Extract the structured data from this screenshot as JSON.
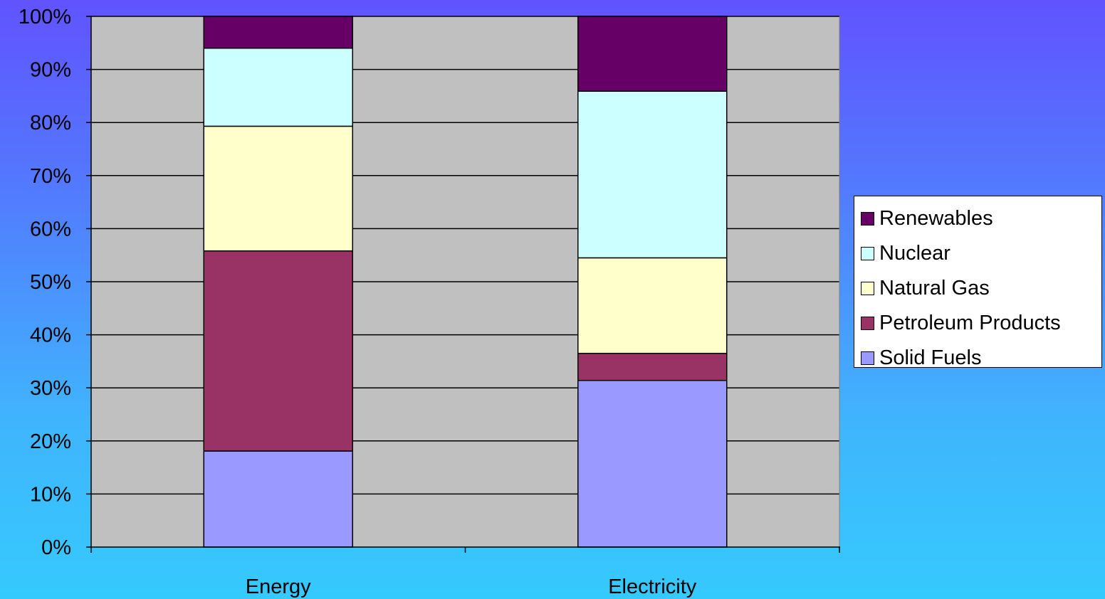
{
  "chart_data": {
    "type": "bar",
    "stacked": true,
    "percent": true,
    "categories": [
      "Energy",
      "Electricity"
    ],
    "series": [
      {
        "name": "Solid Fuels",
        "color": "#9999ff",
        "values": [
          18.1,
          31.4
        ]
      },
      {
        "name": "Petroleum Products",
        "color": "#993366",
        "values": [
          37.7,
          5.1
        ]
      },
      {
        "name": "Natural Gas",
        "color": "#ffffcc",
        "values": [
          23.5,
          18.0
        ]
      },
      {
        "name": "Nuclear",
        "color": "#ccffff",
        "values": [
          14.7,
          31.4
        ]
      },
      {
        "name": "Renewables",
        "color": "#660066",
        "values": [
          6.0,
          14.1
        ]
      }
    ],
    "yticks": [
      "0%",
      "10%",
      "20%",
      "30%",
      "40%",
      "50%",
      "60%",
      "70%",
      "80%",
      "90%",
      "100%"
    ],
    "ylim": [
      0,
      100
    ],
    "grid": true,
    "plot_background": "#c0c0c0",
    "legend_position": "right",
    "legend_order": [
      "Renewables",
      "Nuclear",
      "Natural Gas",
      "Petroleum Products",
      "Solid Fuels"
    ],
    "title": "",
    "xlabel": "",
    "ylabel": ""
  }
}
